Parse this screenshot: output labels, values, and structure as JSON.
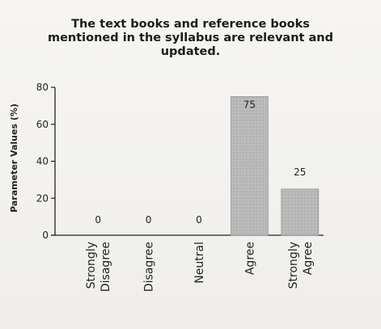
{
  "chart_data": {
    "type": "bar",
    "title_lines": [
      "The text books and reference books",
      "mentioned in the syllabus are relevant and",
      "updated."
    ],
    "ylabel": "Parameter Values (%)",
    "xlabel": "",
    "ylim": [
      0,
      80
    ],
    "yticks": [
      "0",
      "20",
      "40",
      "60",
      "80"
    ],
    "categories": [
      [
        "Strongly",
        "Disagree"
      ],
      [
        "Disagree"
      ],
      [
        "Neutral"
      ],
      [
        "Agree"
      ],
      [
        "Strongly",
        "Agree"
      ]
    ],
    "values": [
      0,
      0,
      0,
      75,
      25
    ],
    "value_labels": [
      "0",
      "0",
      "0",
      "75",
      "25"
    ],
    "grid": false,
    "bar_color": "#b5b5b5"
  }
}
